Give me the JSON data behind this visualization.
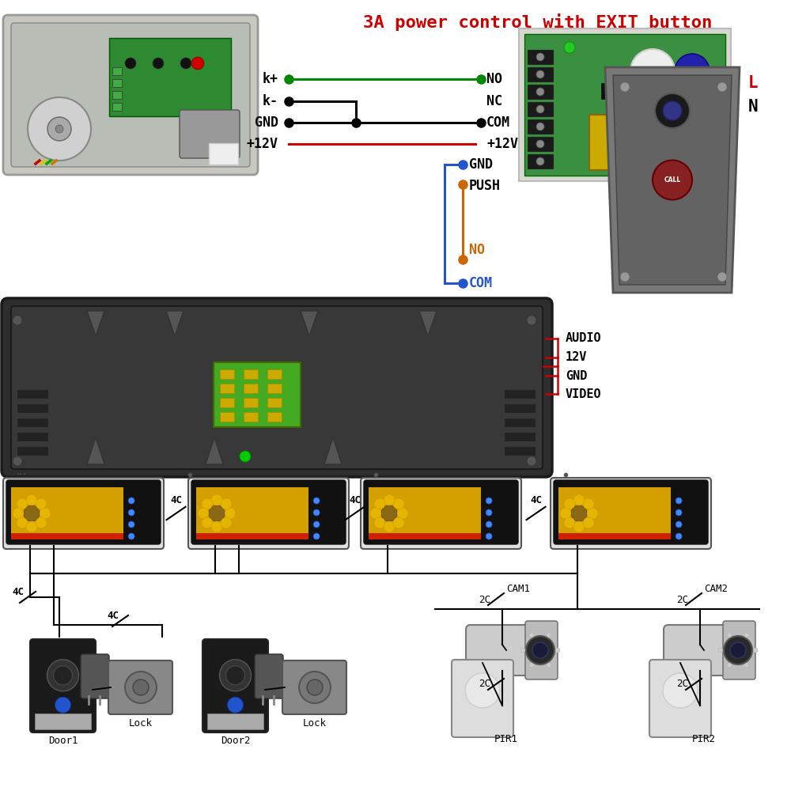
{
  "title": "3A power control with EXIT button",
  "title_color": "#cc0000",
  "title_fontsize": 16,
  "bg_color": "#ffffff",
  "wire_colors": {
    "green": "#008800",
    "black": "#000000",
    "red": "#cc0000",
    "blue": "#2255cc",
    "orange": "#cc6600"
  },
  "left_labels": [
    "k+",
    "k-",
    "GND",
    "+12V"
  ],
  "right_labels": [
    "NO",
    "NC",
    "COM",
    "+12V"
  ],
  "mid_labels": [
    "GND",
    "PUSH"
  ],
  "mid_labels2": [
    "NO",
    "COM"
  ],
  "audio_labels": [
    "AUDIO",
    "12V",
    "GND",
    "VIDEO"
  ],
  "lN_labels": [
    "L",
    "N"
  ],
  "connector_label": "4C",
  "conn2c": "2C",
  "cam_labels": [
    "CAM1",
    "CAM2"
  ],
  "pir_labels": [
    "PIR1",
    "PIR2"
  ],
  "door_labels": [
    "Door1",
    "Door2"
  ],
  "lock_label": "Lock"
}
